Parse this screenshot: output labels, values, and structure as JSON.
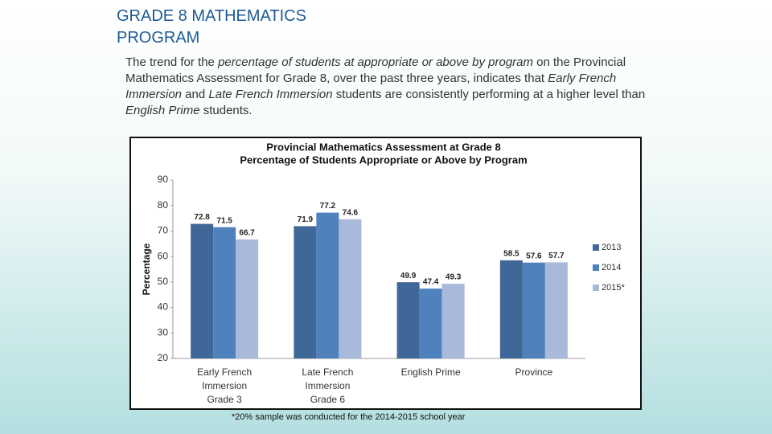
{
  "slide": {
    "title": [
      "GRADE 8 MATHEMATICS",
      "PROGRAM"
    ],
    "body": [
      {
        "text": "The trend for the ",
        "style": "normal"
      },
      {
        "text": "percentage of students at appropriate or above by program",
        "style": "italic"
      },
      {
        "text": " on the Provincial Mathematics Assessment for Grade 8, over the past three years, indicates that ",
        "style": "normal"
      },
      {
        "text": "Early French Immersion",
        "style": "italic"
      },
      {
        "text": " and ",
        "style": "normal"
      },
      {
        "text": "Late French Immersion",
        "style": "italic"
      },
      {
        "text": " students are consistently performing at a higher level than ",
        "style": "normal"
      },
      {
        "text": "English Prime",
        "style": "italic"
      },
      {
        "text": " students.",
        "style": "normal"
      }
    ],
    "footnote": "*20% sample was conducted for the 2014-2015 school year"
  },
  "chart_data": {
    "type": "bar",
    "title": [
      "Provincial Mathematics Assessment at Grade 8",
      "Percentage of Students Appropriate or Above by Program"
    ],
    "y_label": "Percentage",
    "categories": [
      [
        "Early French",
        "Immersion",
        "Grade 3"
      ],
      [
        "Late French",
        "Immersion",
        "Grade 6"
      ],
      [
        "English Prime"
      ],
      [
        "Province"
      ]
    ],
    "series": [
      {
        "name": "2013",
        "color": "#3f6899",
        "values": [
          72.8,
          71.9,
          49.9,
          58.5
        ]
      },
      {
        "name": "2014",
        "color": "#4f81bd",
        "values": [
          71.5,
          77.2,
          47.4,
          57.6
        ]
      },
      {
        "name": "2015*",
        "color": "#a9b9d9",
        "values": [
          66.7,
          74.6,
          49.3,
          57.7
        ]
      }
    ],
    "ylim": [
      20,
      90
    ],
    "yticks": [
      20,
      30,
      40,
      50,
      60,
      70,
      80,
      90
    ],
    "grid": false,
    "legend": "right"
  }
}
